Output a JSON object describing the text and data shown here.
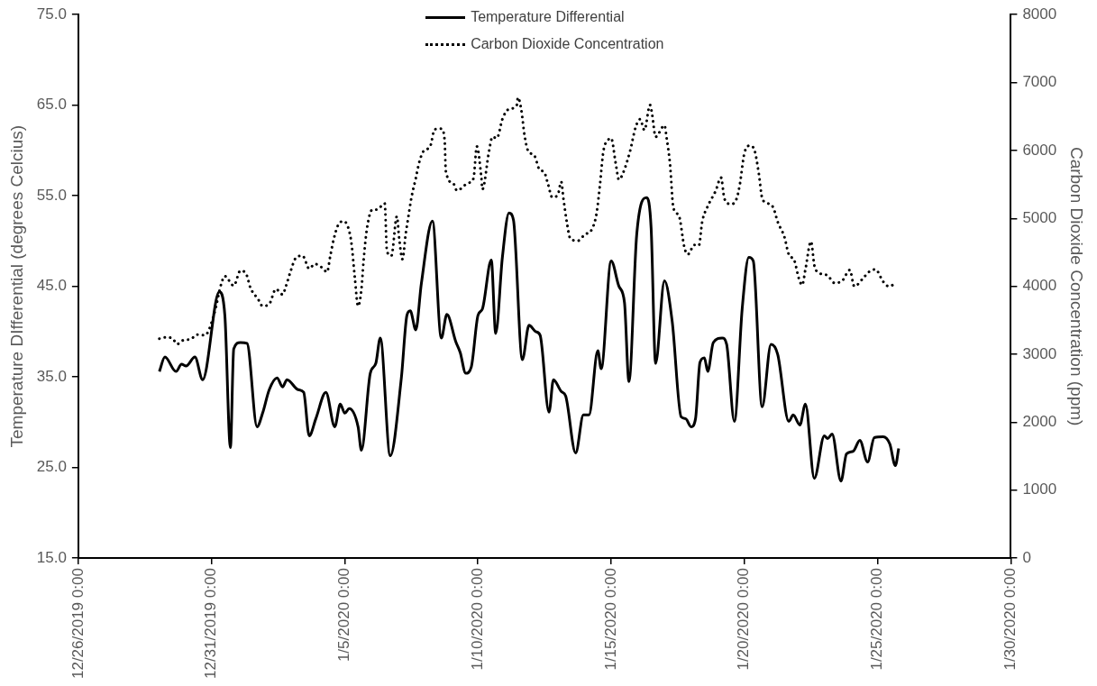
{
  "chart_data": {
    "type": "line",
    "xlabel": null,
    "ylabel": "Temperature DIfferential (degrees Celcius)",
    "y2label": "Carbon Dioxide Concentration (ppm)",
    "xlim": [
      "2019-12-26T00:00",
      "2020-01-30T00:00"
    ],
    "xticks": [
      {
        "value": "2019-12-26T00:00",
        "label": "12/26/2019 0:00"
      },
      {
        "value": "2019-12-31T00:00",
        "label": "12/31/2019 0:00"
      },
      {
        "value": "2020-01-05T00:00",
        "label": "1/5/2020 0:00"
      },
      {
        "value": "2020-01-10T00:00",
        "label": "1/10/2020 0:00"
      },
      {
        "value": "2020-01-15T00:00",
        "label": "1/15/2020 0:00"
      },
      {
        "value": "2020-01-20T00:00",
        "label": "1/20/2020 0:00"
      },
      {
        "value": "2020-01-25T00:00",
        "label": "1/25/2020 0:00"
      },
      {
        "value": "2020-01-30T00:00",
        "label": "1/30/2020 0:00"
      }
    ],
    "ylim": [
      15,
      75
    ],
    "yticks": [
      {
        "value": 15,
        "label": "15.0"
      },
      {
        "value": 25,
        "label": "25.0"
      },
      {
        "value": 35,
        "label": "35.0"
      },
      {
        "value": 45,
        "label": "45.0"
      },
      {
        "value": 55,
        "label": "55.0"
      },
      {
        "value": 65,
        "label": "65.0"
      },
      {
        "value": 75,
        "label": "75.0"
      }
    ],
    "y2lim": [
      0,
      8000
    ],
    "y2ticks": [
      0,
      1000,
      2000,
      3000,
      4000,
      5000,
      6000,
      7000,
      8000
    ],
    "grid": false,
    "legend": "top",
    "marker": "none",
    "series": [
      {
        "name": "Temperature Differential",
        "color": "#000000",
        "line_style": "solid",
        "x": [
          "2019-12-29T01:00",
          "2019-12-29T06:00",
          "2019-12-29T16:00",
          "2019-12-29T21:00",
          "2019-12-30T01:00",
          "2019-12-30T09:00",
          "2019-12-30T16:00",
          "2019-12-31T07:00",
          "2019-12-31T12:00",
          "2019-12-31T17:00",
          "2019-12-31T20:00",
          "2020-01-01T02:00",
          "2020-01-01T08:00",
          "2020-01-01T17:00",
          "2020-01-01T22:00",
          "2020-01-02T04:00",
          "2020-01-02T11:00",
          "2020-01-02T16:00",
          "2020-01-02T20:00",
          "2020-01-03T06:00",
          "2020-01-03T11:00",
          "2020-01-03T16:00",
          "2020-01-03T22:00",
          "2020-01-04T07:00",
          "2020-01-04T15:00",
          "2020-01-04T20:00",
          "2020-01-05T00:00",
          "2020-01-05T04:00",
          "2020-01-05T12:00",
          "2020-01-05T15:00",
          "2020-01-05T23:00",
          "2020-01-06T04:00",
          "2020-01-06T08:00",
          "2020-01-06T17:00",
          "2020-01-07T03:00",
          "2020-01-07T08:00",
          "2020-01-07T11:00",
          "2020-01-07T16:00",
          "2020-01-07T21:00",
          "2020-01-08T07:00",
          "2020-01-08T15:00",
          "2020-01-08T20:00",
          "2020-01-09T04:00",
          "2020-01-09T08:00",
          "2020-01-09T13:00",
          "2020-01-09T18:00",
          "2020-01-10T00:00",
          "2020-01-10T04:00",
          "2020-01-10T12:00",
          "2020-01-10T16:00",
          "2020-01-10T22:00",
          "2020-01-11T04:00",
          "2020-01-11T08:00",
          "2020-01-11T16:00",
          "2020-01-11T22:00",
          "2020-01-12T04:00",
          "2020-01-12T08:00",
          "2020-01-12T16:00",
          "2020-01-12T20:00",
          "2020-01-13T03:00",
          "2020-01-13T07:00",
          "2020-01-13T16:00",
          "2020-01-13T23:00",
          "2020-01-14T04:00",
          "2020-01-14T12:00",
          "2020-01-14T15:00",
          "2020-01-15T00:00",
          "2020-01-15T07:00",
          "2020-01-15T12:00",
          "2020-01-15T16:00",
          "2020-01-15T23:00",
          "2020-01-16T08:00",
          "2020-01-16T12:00",
          "2020-01-16T16:00",
          "2020-01-17T00:00",
          "2020-01-17T07:00",
          "2020-01-17T15:00",
          "2020-01-17T19:00",
          "2020-01-18T00:00",
          "2020-01-18T04:00",
          "2020-01-18T08:00",
          "2020-01-18T12:00",
          "2020-01-18T15:00",
          "2020-01-18T20:00",
          "2020-01-19T04:00",
          "2020-01-19T08:00",
          "2020-01-19T15:00",
          "2020-01-19T22:00",
          "2020-01-20T04:00",
          "2020-01-20T08:00",
          "2020-01-20T16:00",
          "2020-01-21T00:00",
          "2020-01-21T06:00",
          "2020-01-21T16:00",
          "2020-01-21T20:00",
          "2020-01-22T02:00",
          "2020-01-22T07:00",
          "2020-01-22T15:00",
          "2020-01-23T00:00",
          "2020-01-23T03:00",
          "2020-01-23T07:00",
          "2020-01-23T15:00",
          "2020-01-23T20:00",
          "2020-01-24T02:00",
          "2020-01-24T08:00",
          "2020-01-24T15:00",
          "2020-01-24T21:00",
          "2020-01-25T05:00",
          "2020-01-25T11:00",
          "2020-01-25T16:00",
          "2020-01-25T19:00"
        ],
        "values": [
          35.6,
          37.2,
          35.6,
          36.4,
          36.2,
          37.2,
          34.7,
          44.4,
          41.8,
          27.2,
          38.1,
          38.8,
          38.7,
          29.5,
          31.0,
          33.6,
          34.9,
          33.9,
          34.7,
          33.6,
          33.3,
          28.5,
          30.4,
          33.3,
          29.5,
          32.0,
          31.0,
          31.5,
          29.5,
          26.9,
          35.4,
          36.5,
          39.3,
          26.3,
          34.9,
          41.8,
          42.3,
          40.2,
          45.3,
          52.2,
          39.3,
          41.9,
          38.9,
          37.7,
          35.4,
          36.1,
          41.8,
          42.5,
          47.9,
          39.8,
          48.2,
          53.1,
          52.3,
          36.9,
          40.7,
          40.0,
          39.6,
          31.1,
          34.7,
          33.4,
          32.9,
          26.6,
          30.8,
          30.8,
          37.9,
          35.9,
          47.8,
          45.0,
          43.2,
          34.5,
          50.7,
          54.8,
          51.4,
          36.5,
          45.6,
          41.1,
          30.6,
          30.4,
          29.5,
          30.4,
          36.6,
          37.1,
          35.6,
          38.8,
          39.3,
          38.6,
          30.1,
          42.5,
          48.2,
          47.8,
          31.7,
          38.6,
          37.5,
          30.1,
          30.8,
          29.7,
          32.0,
          23.8,
          28.5,
          28.2,
          28.7,
          23.5,
          26.5,
          26.8,
          28.0,
          25.6,
          28.3,
          28.4,
          27.6,
          25.2,
          27.1
        ]
      },
      {
        "name": "Carbon Dioxide Concentration",
        "color": "#000000",
        "line_style": "dotted",
        "axis": "y2",
        "x": [
          "2019-12-29T01:00",
          "2019-12-29T07:00",
          "2019-12-29T13:00",
          "2019-12-29T17:00",
          "2019-12-29T23:00",
          "2019-12-30T05:00",
          "2019-12-30T11:00",
          "2019-12-30T18:00",
          "2019-12-31T02:00",
          "2019-12-31T09:00",
          "2019-12-31T12:00",
          "2019-12-31T20:00",
          "2020-01-01T02:00",
          "2020-01-01T07:00",
          "2020-01-01T11:00",
          "2020-01-01T18:00",
          "2020-01-01T22:00",
          "2020-01-02T04:00",
          "2020-01-02T10:00",
          "2020-01-02T16:00",
          "2020-01-02T19:00",
          "2020-01-02T23:00",
          "2020-01-03T04:00",
          "2020-01-03T10:00",
          "2020-01-03T16:00",
          "2020-01-03T21:00",
          "2020-01-04T04:00",
          "2020-01-04T08:00",
          "2020-01-04T11:00",
          "2020-01-04T14:00",
          "2020-01-04T18:00",
          "2020-01-04T23:00",
          "2020-01-05T03:00",
          "2020-01-05T06:00",
          "2020-01-05T09:00",
          "2020-01-05T12:00",
          "2020-01-05T15:00",
          "2020-01-05T17:00",
          "2020-01-05T20:00",
          "2020-01-06T01:00",
          "2020-01-06T05:00",
          "2020-01-06T12:00",
          "2020-01-06T14:00",
          "2020-01-06T18:00",
          "2020-01-06T23:00",
          "2020-01-07T01:00",
          "2020-01-07T04:00",
          "2020-01-07T07:00",
          "2020-01-07T09:00",
          "2020-01-07T12:00",
          "2020-01-07T16:00",
          "2020-01-07T19:00",
          "2020-01-07T23:00",
          "2020-01-08T05:00",
          "2020-01-08T09:00",
          "2020-01-08T15:00",
          "2020-01-08T18:00",
          "2020-01-08T19:00",
          "2020-01-09T02:00",
          "2020-01-09T05:00",
          "2020-01-09T15:00",
          "2020-01-09T20:00",
          "2020-01-09T23:00",
          "2020-01-10T03:00",
          "2020-01-10T04:00",
          "2020-01-10T10:00",
          "2020-01-10T13:00",
          "2020-01-10T17:00",
          "2020-01-10T22:00",
          "2020-01-11T03:00",
          "2020-01-11T11:00",
          "2020-01-11T12:00",
          "2020-01-11T15:00",
          "2020-01-11T18:00",
          "2020-01-11T21:00",
          "2020-01-12T03:00",
          "2020-01-12T07:00",
          "2020-01-12T12:00",
          "2020-01-12T15:00",
          "2020-01-12T19:00",
          "2020-01-13T00:00",
          "2020-01-13T03:00",
          "2020-01-13T05:00",
          "2020-01-13T08:00",
          "2020-01-13T11:00",
          "2020-01-13T18:00",
          "2020-01-14T00:00",
          "2020-01-14T07:00",
          "2020-01-14T11:00",
          "2020-01-14T14:00",
          "2020-01-14T17:00",
          "2020-01-14T21:00",
          "2020-01-15T00:00",
          "2020-01-15T04:00",
          "2020-01-15T07:00",
          "2020-01-15T11:00",
          "2020-01-15T17:00",
          "2020-01-15T22:00",
          "2020-01-16T02:00",
          "2020-01-16T06:00",
          "2020-01-16T11:00",
          "2020-01-16T13:00",
          "2020-01-16T16:00",
          "2020-01-17T00:00",
          "2020-01-17T02:00",
          "2020-01-17T05:00",
          "2020-01-17T08:00",
          "2020-01-17T13:00",
          "2020-01-17T18:00",
          "2020-01-17T21:00",
          "2020-01-18T03:00",
          "2020-01-18T07:00",
          "2020-01-18T10:00",
          "2020-01-18T15:00",
          "2020-01-18T22:00",
          "2020-01-19T03:00",
          "2020-01-19T06:00",
          "2020-01-19T12:00",
          "2020-01-19T17:00",
          "2020-01-19T20:00",
          "2020-01-20T00:00",
          "2020-01-20T05:00",
          "2020-01-20T09:00",
          "2020-01-20T13:00",
          "2020-01-20T16:00",
          "2020-01-20T20:00",
          "2020-01-21T02:00",
          "2020-01-21T06:00",
          "2020-01-21T12:00",
          "2020-01-21T16:00",
          "2020-01-21T21:00",
          "2020-01-22T01:00",
          "2020-01-22T04:00",
          "2020-01-22T07:00",
          "2020-01-22T12:00",
          "2020-01-22T15:00",
          "2020-01-22T18:00",
          "2020-01-23T03:00",
          "2020-01-23T09:00",
          "2020-01-23T16:00",
          "2020-01-23T23:00",
          "2020-01-24T03:00",
          "2020-01-24T11:00",
          "2020-01-24T16:00",
          "2020-01-24T22:00",
          "2020-01-25T05:00",
          "2020-01-25T10:00",
          "2020-01-25T17:00"
        ],
        "values": [
          3230,
          3250,
          3230,
          3150,
          3210,
          3220,
          3290,
          3280,
          3570,
          4050,
          4150,
          4010,
          4230,
          4190,
          3980,
          3810,
          3710,
          3740,
          3960,
          3880,
          4000,
          4210,
          4420,
          4450,
          4260,
          4330,
          4270,
          4210,
          4450,
          4690,
          4900,
          4960,
          4870,
          4640,
          4140,
          3710,
          3950,
          4380,
          4850,
          5130,
          5130,
          5220,
          4520,
          4450,
          5030,
          4710,
          4400,
          4780,
          4990,
          5300,
          5590,
          5820,
          5990,
          6060,
          6310,
          6320,
          6150,
          5700,
          5510,
          5410,
          5520,
          5590,
          6060,
          5610,
          5430,
          5990,
          6200,
          6180,
          6460,
          6600,
          6670,
          6780,
          6600,
          6220,
          6000,
          5920,
          5730,
          5670,
          5510,
          5310,
          5350,
          5540,
          5290,
          4950,
          4710,
          4670,
          4760,
          4850,
          5090,
          5510,
          5990,
          6150,
          6180,
          5820,
          5570,
          5680,
          5990,
          6340,
          6460,
          6300,
          6670,
          6520,
          6200,
          6370,
          6180,
          5800,
          5160,
          5040,
          4570,
          4470,
          4610,
          4600,
          4950,
          5180,
          5400,
          5600,
          5290,
          5210,
          5290,
          5510,
          5960,
          6070,
          6010,
          5660,
          5300,
          5230,
          5160,
          4950,
          4730,
          4470,
          4380,
          4120,
          4020,
          4250,
          4660,
          4310,
          4210,
          4160,
          4050,
          4080,
          4240,
          4000,
          4120,
          4210,
          4250,
          4070,
          4000,
          4050
        ]
      }
    ]
  }
}
